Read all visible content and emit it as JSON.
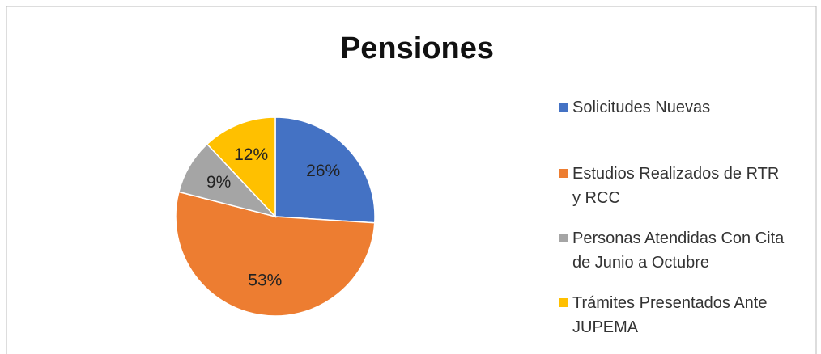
{
  "chart_data": {
    "type": "pie",
    "title": "Pensiones",
    "categories": [
      "Solicitudes Nuevas",
      "Estudios Realizados de RTR y RCC",
      "Personas Atendidas Con Cita de Junio a Octubre",
      "Trámites Presentados Ante JUPEMA"
    ],
    "values": [
      26,
      53,
      9,
      12
    ],
    "value_labels": [
      "26%",
      "53%",
      "9%",
      "12%"
    ],
    "colors": [
      "#4472c4",
      "#ed7d31",
      "#a5a5a5",
      "#ffc000"
    ],
    "legend": "right"
  }
}
